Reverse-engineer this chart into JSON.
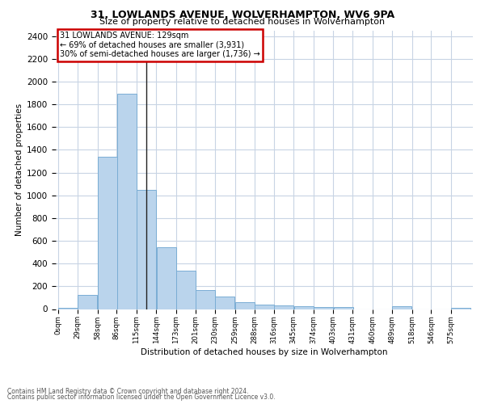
{
  "title1": "31, LOWLANDS AVENUE, WOLVERHAMPTON, WV6 9PA",
  "title2": "Size of property relative to detached houses in Wolverhampton",
  "xlabel": "Distribution of detached houses by size in Wolverhampton",
  "ylabel": "Number of detached properties",
  "footer1": "Contains HM Land Registry data © Crown copyright and database right 2024.",
  "footer2": "Contains public sector information licensed under the Open Government Licence v3.0.",
  "annotation_line1": "31 LOWLANDS AVENUE: 129sqm",
  "annotation_line2": "← 69% of detached houses are smaller (3,931)",
  "annotation_line3": "30% of semi-detached houses are larger (1,736) →",
  "property_size": 129,
  "bar_color": "#bad4ec",
  "bar_edge_color": "#7aadd4",
  "vline_color": "#222222",
  "annotation_box_edgecolor": "#cc0000",
  "background_color": "#ffffff",
  "grid_color": "#c8d4e4",
  "categories": [
    "0sqm",
    "29sqm",
    "58sqm",
    "86sqm",
    "115sqm",
    "144sqm",
    "173sqm",
    "201sqm",
    "230sqm",
    "259sqm",
    "288sqm",
    "316sqm",
    "345sqm",
    "374sqm",
    "403sqm",
    "431sqm",
    "460sqm",
    "489sqm",
    "518sqm",
    "546sqm",
    "575sqm"
  ],
  "bin_lefts": [
    0,
    29,
    58,
    86,
    115,
    144,
    173,
    201,
    230,
    259,
    288,
    316,
    345,
    374,
    403,
    431,
    460,
    489,
    518,
    546,
    575
  ],
  "bin_width": 29,
  "values": [
    12,
    125,
    1340,
    1890,
    1045,
    540,
    338,
    165,
    110,
    62,
    40,
    30,
    27,
    20,
    15,
    0,
    0,
    25,
    0,
    0,
    12
  ],
  "ylim": [
    0,
    2450
  ],
  "yticks": [
    0,
    200,
    400,
    600,
    800,
    1000,
    1200,
    1400,
    1600,
    1800,
    2000,
    2200,
    2400
  ]
}
